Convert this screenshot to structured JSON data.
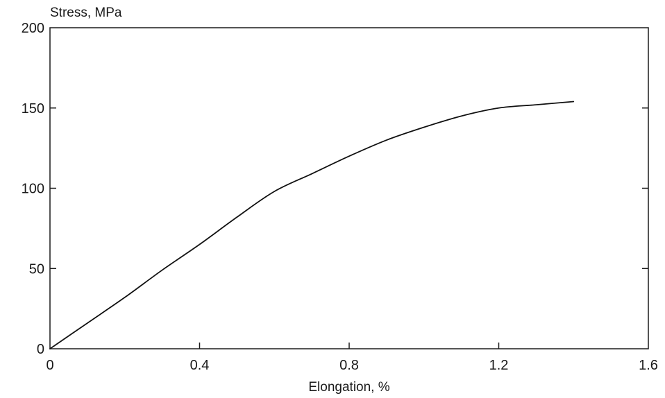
{
  "chart_data": {
    "type": "line",
    "title": "",
    "xlabel": "Elongation, %",
    "ylabel": "Stress, MPa",
    "xlim": [
      0,
      1.6
    ],
    "ylim": [
      0,
      200
    ],
    "x_ticks": [
      0,
      0.4,
      0.8,
      1.2,
      1.6
    ],
    "x_tick_labels": [
      "0",
      "0.4",
      "0.8",
      "1.2",
      "1.6"
    ],
    "y_ticks": [
      0,
      50,
      100,
      150,
      200
    ],
    "y_tick_labels": [
      "0",
      "50",
      "100",
      "150",
      "200"
    ],
    "grid": false,
    "legend": "none",
    "series": [
      {
        "x": [
          0,
          0.1,
          0.2,
          0.3,
          0.4,
          0.5,
          0.6,
          0.7,
          0.8,
          0.9,
          1.0,
          1.1,
          1.2,
          1.3,
          1.4
        ],
        "y": [
          0,
          16,
          32,
          49,
          65,
          82,
          98,
          109,
          120,
          130,
          138,
          145,
          150,
          152,
          154
        ],
        "color": "#111111"
      }
    ]
  }
}
